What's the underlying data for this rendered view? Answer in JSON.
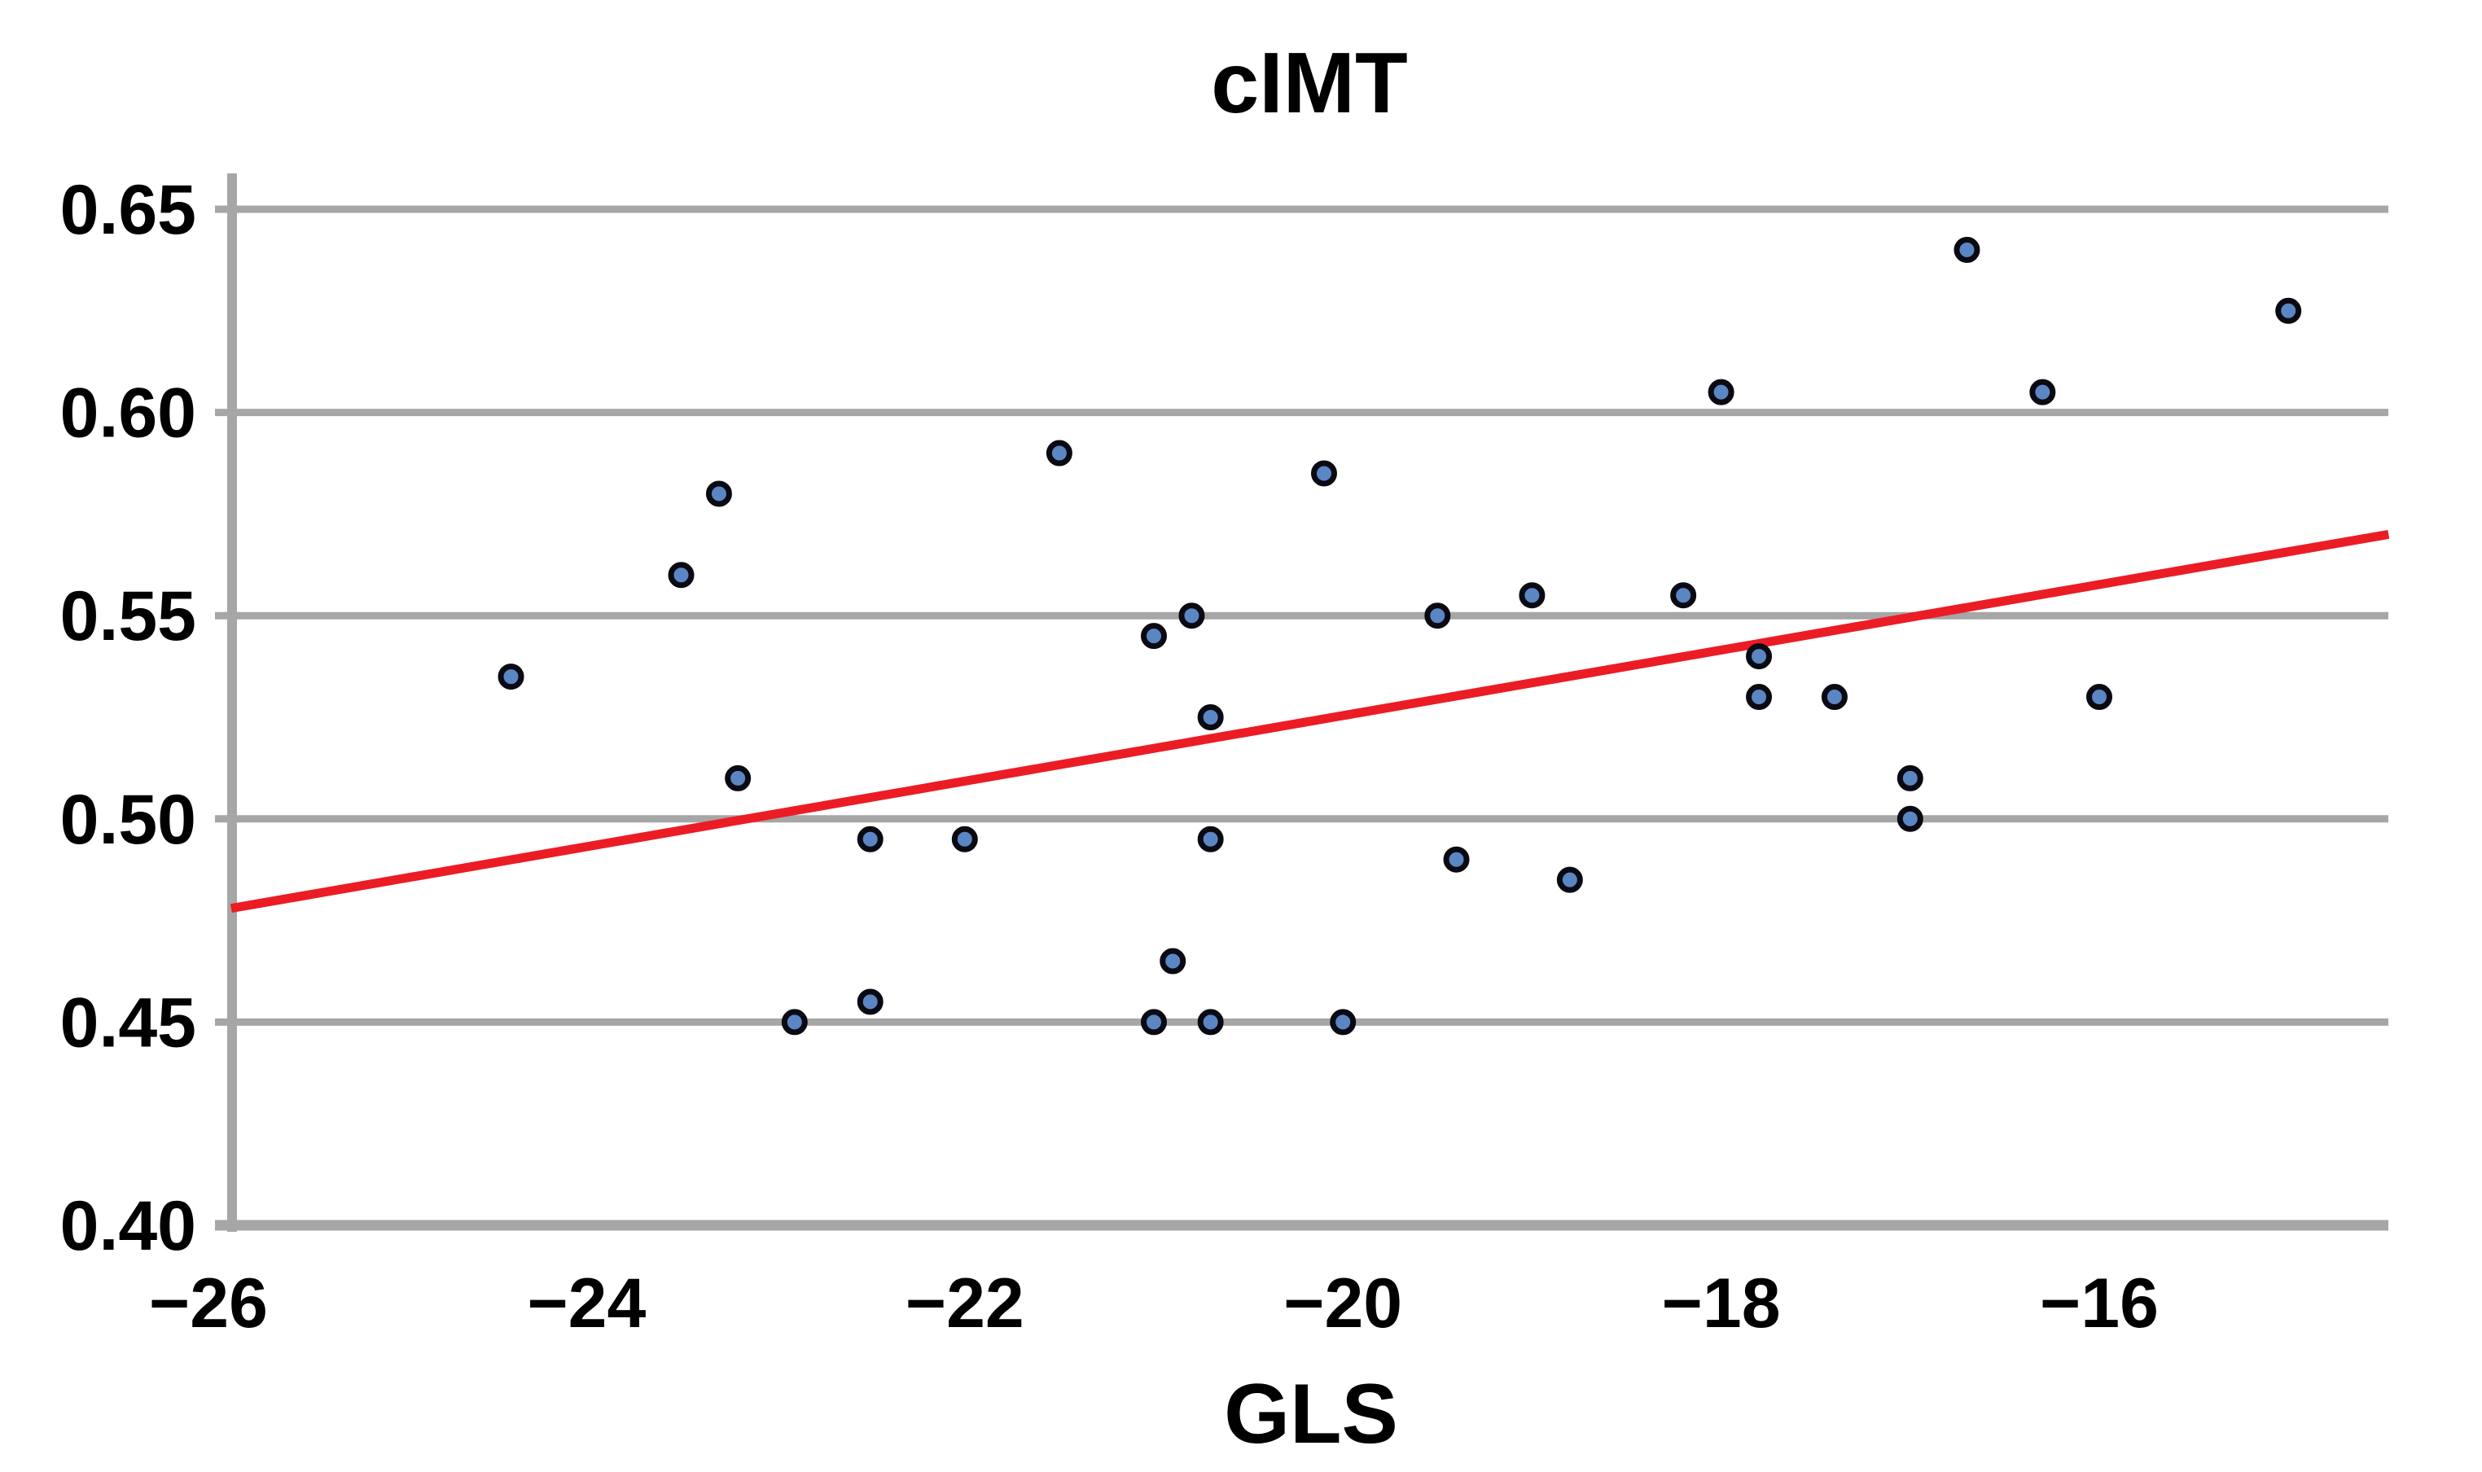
{
  "title": "cIMT",
  "x_axis": {
    "label": "GLS",
    "ticks": [
      {
        "value": -26,
        "label": "−26"
      },
      {
        "value": -24,
        "label": "−24"
      },
      {
        "value": -22,
        "label": "−22"
      },
      {
        "value": -20,
        "label": "−20"
      },
      {
        "value": -18,
        "label": "−18"
      },
      {
        "value": -16,
        "label": "−16"
      }
    ],
    "range": [
      -25.88,
      -14.47
    ]
  },
  "y_axis": {
    "ticks": [
      {
        "value": 0.65,
        "label": "0.65"
      },
      {
        "value": 0.6,
        "label": "0.60"
      },
      {
        "value": 0.55,
        "label": "0.55"
      },
      {
        "value": 0.5,
        "label": "0.50"
      },
      {
        "value": 0.45,
        "label": "0.45"
      },
      {
        "value": 0.4,
        "label": "0.40"
      }
    ],
    "range": [
      0.4,
      0.659
    ]
  },
  "colors": {
    "point_fill": "#5b86c4",
    "point_stroke": "#0a0a12",
    "grid": "#a6a6a6",
    "trend": "#ec1c24",
    "text": "#000000",
    "background": "#ffffff"
  },
  "chart_data": {
    "type": "scatter",
    "title": "cIMT",
    "xlabel": "GLS",
    "ylabel": "cIMT",
    "xlim": [
      -25.88,
      -14.47
    ],
    "ylim": [
      0.4,
      0.659
    ],
    "grid": "horizontal-only",
    "legend": "none",
    "points": [
      {
        "gls": -24.4,
        "cimt": 0.535
      },
      {
        "gls": -23.5,
        "cimt": 0.56
      },
      {
        "gls": -23.3,
        "cimt": 0.58
      },
      {
        "gls": -23.2,
        "cimt": 0.51
      },
      {
        "gls": -22.9,
        "cimt": 0.45
      },
      {
        "gls": -22.5,
        "cimt": 0.495
      },
      {
        "gls": -22.5,
        "cimt": 0.455
      },
      {
        "gls": -22.0,
        "cimt": 0.495
      },
      {
        "gls": -21.5,
        "cimt": 0.59
      },
      {
        "gls": -21.0,
        "cimt": 0.545
      },
      {
        "gls": -21.0,
        "cimt": 0.45
      },
      {
        "gls": -20.9,
        "cimt": 0.465
      },
      {
        "gls": -20.8,
        "cimt": 0.55
      },
      {
        "gls": -20.7,
        "cimt": 0.525
      },
      {
        "gls": -20.7,
        "cimt": 0.495
      },
      {
        "gls": -20.7,
        "cimt": 0.45
      },
      {
        "gls": -20.1,
        "cimt": 0.585
      },
      {
        "gls": -20.0,
        "cimt": 0.45
      },
      {
        "gls": -19.5,
        "cimt": 0.55
      },
      {
        "gls": -19.4,
        "cimt": 0.49
      },
      {
        "gls": -19.0,
        "cimt": 0.555
      },
      {
        "gls": -18.8,
        "cimt": 0.485
      },
      {
        "gls": -18.2,
        "cimt": 0.555
      },
      {
        "gls": -18.0,
        "cimt": 0.605
      },
      {
        "gls": -17.8,
        "cimt": 0.54
      },
      {
        "gls": -17.8,
        "cimt": 0.53
      },
      {
        "gls": -17.4,
        "cimt": 0.53
      },
      {
        "gls": -17.0,
        "cimt": 0.51
      },
      {
        "gls": -17.0,
        "cimt": 0.5
      },
      {
        "gls": -16.7,
        "cimt": 0.64
      },
      {
        "gls": -16.3,
        "cimt": 0.605
      },
      {
        "gls": -16.0,
        "cimt": 0.53
      },
      {
        "gls": -15.0,
        "cimt": 0.625
      }
    ],
    "trend_line": {
      "x1": -25.88,
      "y1": 0.478,
      "x2": -14.47,
      "y2": 0.57
    }
  }
}
